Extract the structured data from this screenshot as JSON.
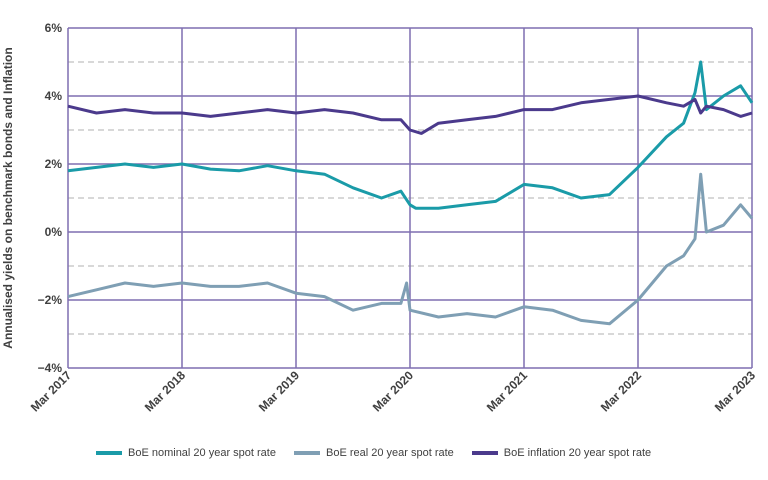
{
  "chart_data": {
    "type": "line",
    "ylabel": "Annualised yields on benchmark bonds and Inflation",
    "ylim": [
      -4,
      6
    ],
    "y_ticks": [
      "6%",
      "4%",
      "2%",
      "0%",
      "−2%",
      "−4%"
    ],
    "x_ticks": [
      "Mar 2017",
      "Mar 2018",
      "Mar 2019",
      "Mar 2020",
      "Mar 2021",
      "Mar 2022",
      "Mar 2023"
    ],
    "xlim": [
      2017.0,
      2023.0
    ],
    "grid": {
      "major": true,
      "minor_dashed": true
    },
    "legend_position": "bottom",
    "colors": {
      "nominal": "#1A9BA8",
      "real": "#7F9FB4",
      "inflation": "#4B3A8C",
      "grid": "#7F6FB0",
      "minor_grid": "#B0B0B0"
    },
    "series": [
      {
        "name": "BoE nominal 20 year spot rate",
        "key": "nominal",
        "x": [
          2017.0,
          2017.25,
          2017.5,
          2017.75,
          2018.0,
          2018.25,
          2018.5,
          2018.75,
          2019.0,
          2019.25,
          2019.5,
          2019.75,
          2019.92,
          2020.0,
          2020.05,
          2020.25,
          2020.5,
          2020.75,
          2021.0,
          2021.25,
          2021.5,
          2021.75,
          2022.0,
          2022.25,
          2022.4,
          2022.5,
          2022.55,
          2022.6,
          2022.75,
          2022.9,
          2023.0
        ],
        "y": [
          1.8,
          1.9,
          2.0,
          1.9,
          2.0,
          1.85,
          1.8,
          1.95,
          1.8,
          1.7,
          1.3,
          1.0,
          1.2,
          0.8,
          0.7,
          0.7,
          0.8,
          0.9,
          1.4,
          1.3,
          1.0,
          1.1,
          1.9,
          2.8,
          3.2,
          4.1,
          5.0,
          3.6,
          4.0,
          4.3,
          3.8
        ]
      },
      {
        "name": "BoE real 20 year spot rate",
        "key": "real",
        "x": [
          2017.0,
          2017.25,
          2017.5,
          2017.75,
          2018.0,
          2018.25,
          2018.5,
          2018.75,
          2019.0,
          2019.25,
          2019.5,
          2019.75,
          2019.92,
          2019.97,
          2020.0,
          2020.25,
          2020.5,
          2020.75,
          2021.0,
          2021.25,
          2021.5,
          2021.75,
          2022.0,
          2022.25,
          2022.4,
          2022.5,
          2022.55,
          2022.6,
          2022.75,
          2022.9,
          2023.0
        ],
        "y": [
          -1.9,
          -1.7,
          -1.5,
          -1.6,
          -1.5,
          -1.6,
          -1.6,
          -1.5,
          -1.8,
          -1.9,
          -2.3,
          -2.1,
          -2.1,
          -1.5,
          -2.3,
          -2.5,
          -2.4,
          -2.5,
          -2.2,
          -2.3,
          -2.6,
          -2.7,
          -2.0,
          -1.0,
          -0.7,
          -0.2,
          1.7,
          0.0,
          0.2,
          0.8,
          0.4
        ]
      },
      {
        "name": "BoE inflation 20 year spot rate",
        "key": "inflation",
        "x": [
          2017.0,
          2017.25,
          2017.5,
          2017.75,
          2018.0,
          2018.25,
          2018.5,
          2018.75,
          2019.0,
          2019.25,
          2019.5,
          2019.75,
          2019.92,
          2020.0,
          2020.1,
          2020.25,
          2020.5,
          2020.75,
          2021.0,
          2021.25,
          2021.5,
          2021.75,
          2022.0,
          2022.25,
          2022.4,
          2022.5,
          2022.55,
          2022.6,
          2022.75,
          2022.9,
          2023.0
        ],
        "y": [
          3.7,
          3.5,
          3.6,
          3.5,
          3.5,
          3.4,
          3.5,
          3.6,
          3.5,
          3.6,
          3.5,
          3.3,
          3.3,
          3.0,
          2.9,
          3.2,
          3.3,
          3.4,
          3.6,
          3.6,
          3.8,
          3.9,
          4.0,
          3.8,
          3.7,
          3.9,
          3.5,
          3.7,
          3.6,
          3.4,
          3.5
        ]
      }
    ]
  }
}
